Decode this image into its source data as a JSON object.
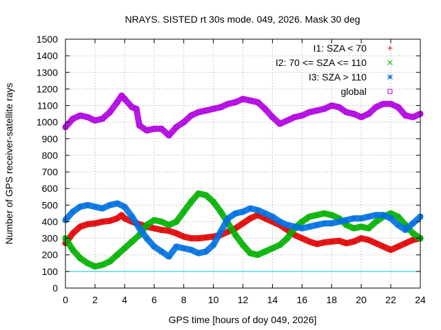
{
  "chart_data": {
    "type": "scatter",
    "title": "NRAYS. SISTED rt 30s mode. 049, 2026. Mask 30 deg",
    "xlabel": "GPS time [hours of doy 049, 2026]",
    "ylabel": "Number of GPS receiver-satellite rays",
    "xlim": [
      0,
      24
    ],
    "ylim": [
      0,
      1500
    ],
    "xticks": [
      0,
      2,
      4,
      6,
      8,
      10,
      12,
      14,
      16,
      18,
      20,
      22,
      24
    ],
    "yticks": [
      0,
      100,
      200,
      300,
      400,
      500,
      600,
      700,
      800,
      900,
      1000,
      1100,
      1200,
      1300,
      1400,
      1500
    ],
    "grid": true,
    "legend_position": "top-right",
    "reference_line": {
      "y": 100,
      "color": "#00c8d8"
    },
    "series": [
      {
        "name": "I1: SZA < 70",
        "marker": "+",
        "color": "#e00000",
        "x": [
          0.0,
          0.5,
          1.0,
          1.5,
          2.0,
          2.5,
          3.0,
          3.5,
          3.8,
          4.0,
          4.5,
          5.0,
          5.5,
          6.0,
          6.5,
          7.0,
          7.5,
          8.0,
          8.5,
          9.0,
          9.5,
          10.0,
          10.5,
          11.0,
          11.5,
          12.0,
          12.5,
          13.0,
          13.5,
          14.0,
          14.5,
          15.0,
          15.5,
          16.0,
          16.5,
          17.0,
          17.5,
          18.0,
          18.5,
          19.0,
          19.5,
          20.0,
          20.5,
          21.0,
          21.5,
          22.0,
          22.5,
          23.0,
          23.5,
          24.0
        ],
        "y": [
          270,
          330,
          370,
          385,
          390,
          400,
          405,
          420,
          440,
          420,
          400,
          385,
          370,
          360,
          350,
          345,
          330,
          310,
          300,
          300,
          305,
          310,
          320,
          340,
          360,
          390,
          420,
          440,
          420,
          400,
          380,
          350,
          320,
          300,
          280,
          265,
          275,
          280,
          285,
          270,
          280,
          300,
          290,
          270,
          250,
          230,
          250,
          270,
          290,
          300
        ]
      },
      {
        "name": "I2: 70 <= SZA <= 110",
        "marker": "x",
        "color": "#00b000",
        "x": [
          0.0,
          0.5,
          1.0,
          1.5,
          2.0,
          2.5,
          3.0,
          3.5,
          4.0,
          4.5,
          5.0,
          5.5,
          6.0,
          6.5,
          7.0,
          7.5,
          8.0,
          8.5,
          9.0,
          9.5,
          10.0,
          10.5,
          11.0,
          11.5,
          12.0,
          12.5,
          13.0,
          13.5,
          14.0,
          14.5,
          15.0,
          15.5,
          16.0,
          16.5,
          17.0,
          17.5,
          18.0,
          18.5,
          19.0,
          19.5,
          20.0,
          20.5,
          21.0,
          21.5,
          22.0,
          22.5,
          23.0,
          23.5,
          24.0
        ],
        "y": [
          300,
          230,
          180,
          150,
          130,
          140,
          160,
          200,
          240,
          280,
          320,
          380,
          410,
          400,
          380,
          400,
          460,
          520,
          570,
          560,
          520,
          460,
          390,
          320,
          260,
          210,
          200,
          220,
          240,
          260,
          300,
          360,
          400,
          430,
          440,
          450,
          440,
          420,
          380,
          360,
          370,
          360,
          400,
          430,
          450,
          430,
          380,
          330,
          300
        ]
      },
      {
        "name": "I3: SZA > 110",
        "marker": "*",
        "color": "#0070e0",
        "x": [
          0.0,
          0.5,
          1.0,
          1.5,
          2.0,
          2.5,
          3.0,
          3.5,
          4.0,
          4.5,
          5.0,
          5.5,
          6.0,
          6.5,
          7.0,
          7.5,
          8.0,
          8.5,
          9.0,
          9.5,
          10.0,
          10.5,
          11.0,
          11.5,
          12.0,
          12.5,
          13.0,
          13.5,
          14.0,
          14.5,
          15.0,
          15.5,
          16.0,
          16.5,
          17.0,
          17.5,
          18.0,
          18.5,
          19.0,
          19.5,
          20.0,
          20.5,
          21.0,
          21.5,
          22.0,
          22.5,
          23.0,
          23.5,
          24.0
        ],
        "y": [
          410,
          460,
          490,
          500,
          490,
          480,
          500,
          510,
          490,
          430,
          360,
          300,
          250,
          220,
          190,
          250,
          240,
          230,
          210,
          220,
          260,
          340,
          420,
          450,
          460,
          480,
          470,
          450,
          430,
          400,
          380,
          370,
          360,
          370,
          380,
          390,
          390,
          400,
          410,
          420,
          420,
          430,
          440,
          440,
          420,
          380,
          350,
          390,
          430
        ]
      },
      {
        "name": "global",
        "marker": "square",
        "color": "#b000e0",
        "x": [
          0.0,
          0.5,
          1.0,
          1.5,
          2.0,
          2.5,
          3.0,
          3.5,
          3.8,
          4.0,
          4.5,
          4.8,
          5.0,
          5.5,
          6.0,
          6.5,
          7.0,
          7.5,
          8.0,
          8.5,
          9.0,
          9.5,
          10.0,
          10.5,
          11.0,
          11.5,
          12.0,
          12.5,
          13.0,
          13.5,
          14.0,
          14.5,
          15.0,
          15.5,
          16.0,
          16.5,
          17.0,
          17.5,
          18.0,
          18.5,
          19.0,
          19.5,
          20.0,
          20.5,
          21.0,
          21.5,
          22.0,
          22.5,
          23.0,
          23.5,
          24.0
        ],
        "y": [
          970,
          1020,
          1040,
          1030,
          1010,
          1020,
          1060,
          1120,
          1160,
          1140,
          1090,
          1080,
          980,
          950,
          960,
          960,
          920,
          970,
          1000,
          1040,
          1060,
          1070,
          1080,
          1090,
          1110,
          1120,
          1140,
          1130,
          1120,
          1080,
          1030,
          990,
          1010,
          1030,
          1040,
          1060,
          1070,
          1080,
          1100,
          1090,
          1060,
          1050,
          1030,
          1050,
          1090,
          1110,
          1110,
          1090,
          1040,
          1030,
          1050
        ]
      }
    ]
  }
}
